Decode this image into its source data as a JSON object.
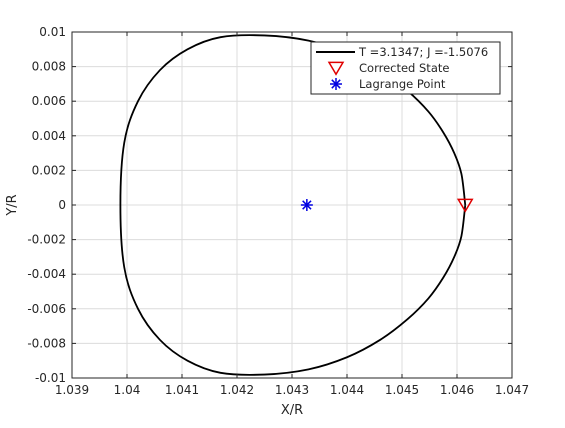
{
  "chart_data": {
    "type": "line",
    "xlabel": "X/R",
    "ylabel": "Y/R",
    "xlim": [
      1.039,
      1.047
    ],
    "ylim": [
      -0.01,
      0.01
    ],
    "x_ticks": [
      "1.039",
      "1.04",
      "1.041",
      "1.042",
      "1.043",
      "1.044",
      "1.045",
      "1.046",
      "1.047"
    ],
    "y_ticks": [
      "-0.01",
      "-0.008",
      "-0.006",
      "-0.004",
      "-0.002",
      "0",
      "0.002",
      "0.004",
      "0.006",
      "0.008",
      "0.01"
    ],
    "grid": true,
    "legend_position": "top-right",
    "series": [
      {
        "name": "T =3.1347; J =-1.5076",
        "kind": "line",
        "color": "#000000",
        "points": [
          [
            1.04615,
            0.0
          ],
          [
            1.04608,
            0.0018
          ],
          [
            1.04595,
            0.003
          ],
          [
            1.04575,
            0.0042
          ],
          [
            1.04548,
            0.0054
          ],
          [
            1.0451,
            0.0066
          ],
          [
            1.0446,
            0.0078
          ],
          [
            1.044,
            0.0088
          ],
          [
            1.0433,
            0.0095
          ],
          [
            1.0425,
            0.0098
          ],
          [
            1.0417,
            0.0097
          ],
          [
            1.0411,
            0.009
          ],
          [
            1.0406,
            0.0078
          ],
          [
            1.0402,
            0.006
          ],
          [
            1.03995,
            0.0036
          ],
          [
            1.03988,
            0.0
          ],
          [
            1.03995,
            -0.0036
          ],
          [
            1.0402,
            -0.006
          ],
          [
            1.0406,
            -0.0078
          ],
          [
            1.0411,
            -0.009
          ],
          [
            1.0417,
            -0.0097
          ],
          [
            1.0425,
            -0.0098
          ],
          [
            1.0433,
            -0.0095
          ],
          [
            1.044,
            -0.0088
          ],
          [
            1.0446,
            -0.0078
          ],
          [
            1.0451,
            -0.0066
          ],
          [
            1.04548,
            -0.0054
          ],
          [
            1.04575,
            -0.0042
          ],
          [
            1.04595,
            -0.003
          ],
          [
            1.04608,
            -0.0018
          ],
          [
            1.04615,
            0.0
          ]
        ]
      },
      {
        "name": "Corrected State",
        "kind": "marker",
        "marker": "triangle-down",
        "color": "#e00000",
        "points": [
          [
            1.04615,
            0.0
          ]
        ]
      },
      {
        "name": "Lagrange Point",
        "kind": "marker",
        "marker": "asterisk",
        "color": "#0000e0",
        "points": [
          [
            1.04327,
            0.0
          ]
        ]
      }
    ]
  }
}
